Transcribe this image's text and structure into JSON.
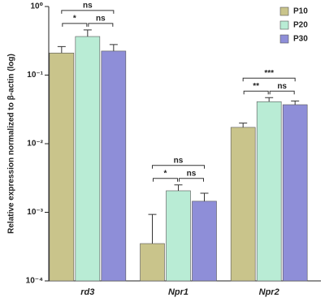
{
  "chart_data": {
    "type": "bar",
    "y_label": "Relative expression normalized to β-actin (log)",
    "categories": [
      "rd3",
      "Npr1",
      "Npr2"
    ],
    "series": [
      {
        "name": "P10",
        "color": "#c9c48b",
        "values": [
          0.21,
          0.00035,
          0.0173
        ],
        "errors": [
          0.05,
          0.00058,
          0.0027
        ]
      },
      {
        "name": "P20",
        "color": "#b9ecd5",
        "values": [
          0.365,
          0.00206,
          0.041
        ],
        "errors": [
          0.09,
          0.00045,
          0.006
        ]
      },
      {
        "name": "P30",
        "color": "#8e8ed8",
        "values": [
          0.224,
          0.00145,
          0.037
        ],
        "errors": [
          0.055,
          0.00045,
          0.005
        ]
      }
    ],
    "log_y": true,
    "ylim": [
      0.0001,
      1
    ],
    "yticks": [
      {
        "value": 0.0001,
        "label": "10⁻⁴"
      },
      {
        "value": 0.001,
        "label": "10⁻³"
      },
      {
        "value": 0.01,
        "label": "10⁻²"
      },
      {
        "value": 0.1,
        "label": "10⁻¹"
      },
      {
        "value": 1,
        "label": "10⁰"
      }
    ],
    "legend": "upper right",
    "annotations": [
      {
        "category": 0,
        "series": [
          0,
          1
        ],
        "text": "*"
      },
      {
        "category": 0,
        "series": [
          1,
          2
        ],
        "text": "ns"
      },
      {
        "category": 0,
        "series": [
          0,
          2
        ],
        "text": "ns"
      },
      {
        "category": 1,
        "series": [
          0,
          1
        ],
        "text": "*"
      },
      {
        "category": 1,
        "series": [
          1,
          2
        ],
        "text": "ns"
      },
      {
        "category": 1,
        "series": [
          0,
          2
        ],
        "text": "ns"
      },
      {
        "category": 2,
        "series": [
          0,
          1
        ],
        "text": "**"
      },
      {
        "category": 2,
        "series": [
          1,
          2
        ],
        "text": "ns"
      },
      {
        "category": 2,
        "series": [
          0,
          2
        ],
        "text": "***"
      }
    ]
  }
}
